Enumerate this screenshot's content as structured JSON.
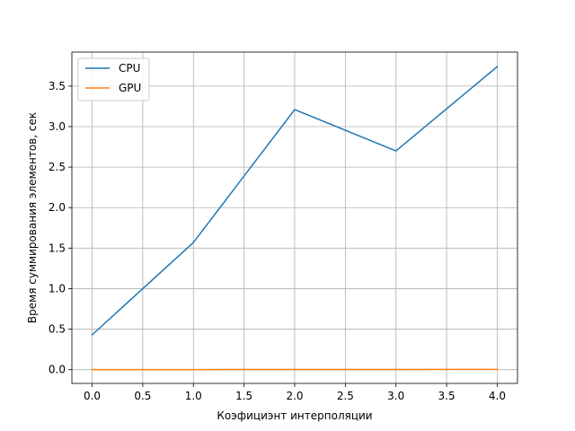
{
  "chart_data": {
    "type": "line",
    "title": "",
    "xlabel": "Коэфициэнт интерполяции",
    "ylabel": "Время суммирования элементов, сек",
    "x": [
      0,
      1,
      2,
      3,
      4
    ],
    "series": [
      {
        "name": "CPU",
        "values": [
          0.43,
          1.57,
          3.21,
          2.7,
          3.74
        ],
        "color": "#1f77b4"
      },
      {
        "name": "GPU",
        "values": [
          0.0,
          0.001,
          0.002,
          0.002,
          0.003
        ],
        "color": "#ff7f0e"
      }
    ],
    "xlim": [
      -0.2,
      4.2
    ],
    "ylim": [
      -0.17,
      3.92
    ],
    "xticks": [
      0.0,
      0.5,
      1.0,
      1.5,
      2.0,
      2.5,
      3.0,
      3.5,
      4.0
    ],
    "xtick_labels": [
      "0.0",
      "0.5",
      "1.0",
      "1.5",
      "2.0",
      "2.5",
      "3.0",
      "3.5",
      "4.0"
    ],
    "yticks": [
      0.0,
      0.5,
      1.0,
      1.5,
      2.0,
      2.5,
      3.0,
      3.5
    ],
    "ytick_labels": [
      "0.0",
      "0.5",
      "1.0",
      "1.5",
      "2.0",
      "2.5",
      "3.0",
      "3.5"
    ],
    "grid": true,
    "legend_position": "upper-left"
  }
}
